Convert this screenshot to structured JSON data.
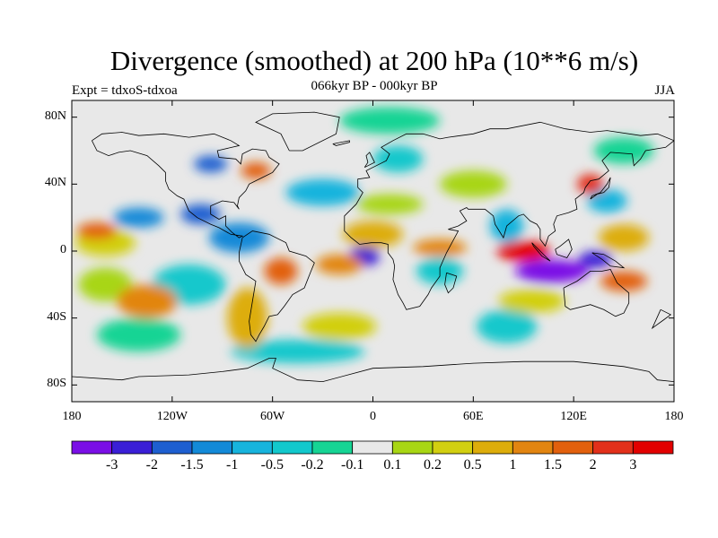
{
  "title": "Divergence (smoothed) at 200 hPa (10**6 m/s)",
  "subtitle": "066kyr BP - 000kyr BP",
  "left_string": "Expt = tdxoS-tdxoa",
  "right_string": "JJA",
  "map": {
    "projection": "cylindrical-equidistant",
    "lon_range": [
      -180,
      180
    ],
    "lat_range": [
      -90,
      90
    ],
    "lat_ticks": [
      {
        "value": 80,
        "label": "80N"
      },
      {
        "value": 40,
        "label": "40N"
      },
      {
        "value": 0,
        "label": "0"
      },
      {
        "value": -40,
        "label": "40S"
      },
      {
        "value": -80,
        "label": "80S"
      }
    ],
    "lon_ticks": [
      {
        "value": -180,
        "label": "180"
      },
      {
        "value": -120,
        "label": "120W"
      },
      {
        "value": -60,
        "label": "60W"
      },
      {
        "value": 0,
        "label": "0"
      },
      {
        "value": 60,
        "label": "60E"
      },
      {
        "value": 120,
        "label": "120E"
      },
      {
        "value": 180,
        "label": "180"
      }
    ],
    "regions": [
      {
        "lon": 107,
        "lat": -12,
        "rx": 22,
        "ry": 7,
        "level": 0
      },
      {
        "lon": 133,
        "lat": -5,
        "rx": 10,
        "ry": 5,
        "level": 1
      },
      {
        "lon": -5,
        "lat": -3,
        "rx": 9,
        "ry": 6,
        "level": 1
      },
      {
        "lon": -97,
        "lat": 52,
        "rx": 10,
        "ry": 5,
        "level": 2
      },
      {
        "lon": -103,
        "lat": 22,
        "rx": 12,
        "ry": 6,
        "level": 2
      },
      {
        "lon": -140,
        "lat": 20,
        "rx": 15,
        "ry": 6,
        "level": 3
      },
      {
        "lon": -80,
        "lat": 8,
        "rx": 18,
        "ry": 9,
        "level": 3
      },
      {
        "lon": -30,
        "lat": 35,
        "rx": 22,
        "ry": 8,
        "level": 4
      },
      {
        "lon": 140,
        "lat": 30,
        "rx": 12,
        "ry": 7,
        "level": 4
      },
      {
        "lon": 80,
        "lat": 15,
        "rx": 10,
        "ry": 10,
        "level": 4
      },
      {
        "lon": 15,
        "lat": 55,
        "rx": 15,
        "ry": 8,
        "level": 5
      },
      {
        "lon": 40,
        "lat": -12,
        "rx": 14,
        "ry": 8,
        "level": 5
      },
      {
        "lon": -110,
        "lat": -20,
        "rx": 22,
        "ry": 12,
        "level": 5
      },
      {
        "lon": 80,
        "lat": -45,
        "rx": 18,
        "ry": 10,
        "level": 5
      },
      {
        "lon": -45,
        "lat": -60,
        "rx": 40,
        "ry": 7,
        "level": 5
      },
      {
        "lon": -140,
        "lat": -50,
        "rx": 25,
        "ry": 10,
        "level": 6
      },
      {
        "lon": 150,
        "lat": 60,
        "rx": 18,
        "ry": 8,
        "level": 6
      },
      {
        "lon": 10,
        "lat": 78,
        "rx": 30,
        "ry": 8,
        "level": 6
      },
      {
        "lon": 10,
        "lat": 28,
        "rx": 20,
        "ry": 6,
        "level": 8
      },
      {
        "lon": 60,
        "lat": 40,
        "rx": 20,
        "ry": 8,
        "level": 8
      },
      {
        "lon": -160,
        "lat": -20,
        "rx": 16,
        "ry": 10,
        "level": 8
      },
      {
        "lon": 95,
        "lat": -30,
        "rx": 20,
        "ry": 7,
        "level": 9
      },
      {
        "lon": -20,
        "lat": -45,
        "rx": 22,
        "ry": 8,
        "level": 9
      },
      {
        "lon": -160,
        "lat": 5,
        "rx": 18,
        "ry": 8,
        "level": 9
      },
      {
        "lon": 0,
        "lat": 10,
        "rx": 18,
        "ry": 8,
        "level": 10
      },
      {
        "lon": -75,
        "lat": -40,
        "rx": 12,
        "ry": 18,
        "level": 10
      },
      {
        "lon": 150,
        "lat": 8,
        "rx": 15,
        "ry": 8,
        "level": 10
      },
      {
        "lon": -135,
        "lat": -30,
        "rx": 18,
        "ry": 10,
        "level": 11
      },
      {
        "lon": -20,
        "lat": -8,
        "rx": 14,
        "ry": 6,
        "level": 11
      },
      {
        "lon": 40,
        "lat": 2,
        "rx": 16,
        "ry": 5,
        "level": 11
      },
      {
        "lon": -165,
        "lat": 12,
        "rx": 12,
        "ry": 5,
        "level": 12
      },
      {
        "lon": -70,
        "lat": 48,
        "rx": 9,
        "ry": 5,
        "level": 12
      },
      {
        "lon": -55,
        "lat": -12,
        "rx": 10,
        "ry": 8,
        "level": 12
      },
      {
        "lon": 150,
        "lat": -18,
        "rx": 14,
        "ry": 6,
        "level": 12
      },
      {
        "lon": 130,
        "lat": 40,
        "rx": 8,
        "ry": 6,
        "level": 13
      },
      {
        "lon": 90,
        "lat": 0,
        "rx": 16,
        "ry": 6,
        "level": 14
      }
    ],
    "coastlines": [
      [
        [
          -168,
          66
        ],
        [
          -162,
          70
        ],
        [
          -150,
          71
        ],
        [
          -140,
          69
        ],
        [
          -125,
          70
        ],
        [
          -110,
          68
        ],
        [
          -95,
          70
        ],
        [
          -85,
          66
        ],
        [
          -80,
          63
        ],
        [
          -93,
          60
        ],
        [
          -92,
          56
        ],
        [
          -82,
          55
        ],
        [
          -79,
          52
        ],
        [
          -78,
          58
        ],
        [
          -72,
          61
        ],
        [
          -64,
          60
        ],
        [
          -62,
          56
        ],
        [
          -56,
          52
        ],
        [
          -60,
          47
        ],
        [
          -66,
          44
        ],
        [
          -70,
          42
        ],
        [
          -74,
          40
        ],
        [
          -76,
          36
        ],
        [
          -80,
          32
        ],
        [
          -81,
          27
        ],
        [
          -80,
          25
        ],
        [
          -83,
          29
        ],
        [
          -90,
          30
        ],
        [
          -97,
          27
        ],
        [
          -97,
          22
        ],
        [
          -92,
          19
        ],
        [
          -88,
          21
        ],
        [
          -88,
          15
        ],
        [
          -84,
          11
        ],
        [
          -80,
          8
        ],
        [
          -78,
          9
        ],
        [
          -85,
          10
        ],
        [
          -92,
          14
        ],
        [
          -97,
          16
        ],
        [
          -105,
          20
        ],
        [
          -110,
          24
        ],
        [
          -113,
          31
        ],
        [
          -117,
          33
        ],
        [
          -122,
          37
        ],
        [
          -124,
          42
        ],
        [
          -124,
          47
        ],
        [
          -128,
          51
        ],
        [
          -135,
          57
        ],
        [
          -145,
          60
        ],
        [
          -152,
          59
        ],
        [
          -158,
          57
        ],
        [
          -165,
          60
        ],
        [
          -168,
          66
        ]
      ],
      [
        [
          -78,
          8
        ],
        [
          -72,
          12
        ],
        [
          -62,
          10
        ],
        [
          -52,
          5
        ],
        [
          -50,
          0
        ],
        [
          -40,
          -3
        ],
        [
          -35,
          -7
        ],
        [
          -37,
          -12
        ],
        [
          -39,
          -17
        ],
        [
          -41,
          -22
        ],
        [
          -48,
          -26
        ],
        [
          -53,
          -33
        ],
        [
          -57,
          -38
        ],
        [
          -62,
          -39
        ],
        [
          -65,
          -45
        ],
        [
          -68,
          -50
        ],
        [
          -70,
          -54
        ],
        [
          -73,
          -50
        ],
        [
          -74,
          -42
        ],
        [
          -72,
          -30
        ],
        [
          -70,
          -18
        ],
        [
          -76,
          -14
        ],
        [
          -80,
          -6
        ],
        [
          -80,
          -1
        ],
        [
          -78,
          8
        ]
      ],
      [
        [
          -50,
          60
        ],
        [
          -42,
          60
        ],
        [
          -22,
          70
        ],
        [
          -20,
          80
        ],
        [
          -35,
          83
        ],
        [
          -60,
          82
        ],
        [
          -70,
          77
        ],
        [
          -55,
          70
        ],
        [
          -50,
          60
        ]
      ],
      [
        [
          -17,
          15
        ],
        [
          -17,
          21
        ],
        [
          -10,
          28
        ],
        [
          -6,
          35
        ],
        [
          -9,
          38
        ],
        [
          -9,
          43
        ],
        [
          -2,
          44
        ],
        [
          -4,
          48
        ],
        [
          2,
          51
        ],
        [
          8,
          54
        ],
        [
          10,
          58
        ],
        [
          5,
          62
        ],
        [
          12,
          66
        ],
        [
          20,
          70
        ],
        [
          30,
          70
        ],
        [
          40,
          67
        ],
        [
          45,
          68
        ],
        [
          60,
          70
        ],
        [
          70,
          73
        ],
        [
          80,
          73
        ],
        [
          100,
          77
        ],
        [
          115,
          73
        ],
        [
          130,
          71
        ],
        [
          140,
          72
        ],
        [
          160,
          69
        ],
        [
          170,
          70
        ],
        [
          180,
          66
        ],
        [
          175,
          62
        ],
        [
          163,
          60
        ],
        [
          160,
          55
        ],
        [
          156,
          51
        ],
        [
          155,
          58
        ],
        [
          142,
          59
        ],
        [
          137,
          54
        ],
        [
          141,
          48
        ],
        [
          135,
          43
        ],
        [
          130,
          42
        ],
        [
          127,
          38
        ],
        [
          126,
          35
        ],
        [
          121,
          31
        ],
        [
          122,
          25
        ],
        [
          117,
          23
        ],
        [
          110,
          21
        ],
        [
          108,
          16
        ],
        [
          109,
          12
        ],
        [
          105,
          9
        ],
        [
          103,
          3
        ],
        [
          100,
          7
        ],
        [
          100,
          13
        ],
        [
          98,
          16
        ],
        [
          94,
          18
        ],
        [
          90,
          22
        ],
        [
          87,
          21
        ],
        [
          80,
          15
        ],
        [
          78,
          8
        ],
        [
          73,
          16
        ],
        [
          72,
          21
        ],
        [
          67,
          25
        ],
        [
          62,
          25
        ],
        [
          57,
          25
        ],
        [
          56,
          26
        ],
        [
          52,
          24
        ],
        [
          56,
          18
        ],
        [
          51,
          15
        ],
        [
          45,
          13
        ],
        [
          51,
          12
        ],
        [
          44,
          -1
        ],
        [
          40,
          -10
        ],
        [
          40,
          -15
        ],
        [
          35,
          -22
        ],
        [
          33,
          -26
        ],
        [
          28,
          -33
        ],
        [
          20,
          -35
        ],
        [
          18,
          -31
        ],
        [
          15,
          -26
        ],
        [
          12,
          -17
        ],
        [
          13,
          -9
        ],
        [
          12,
          -5
        ],
        [
          9,
          -1
        ],
        [
          9,
          4
        ],
        [
          5,
          5
        ],
        [
          -1,
          5
        ],
        [
          -8,
          4
        ],
        [
          -13,
          8
        ],
        [
          -17,
          12
        ],
        [
          -17,
          15
        ]
      ],
      [
        [
          114,
          -22
        ],
        [
          122,
          -18
        ],
        [
          130,
          -12
        ],
        [
          137,
          -12
        ],
        [
          142,
          -11
        ],
        [
          146,
          -19
        ],
        [
          153,
          -25
        ],
        [
          153,
          -31
        ],
        [
          150,
          -37
        ],
        [
          145,
          -39
        ],
        [
          138,
          -35
        ],
        [
          130,
          -32
        ],
        [
          118,
          -35
        ],
        [
          115,
          -33
        ],
        [
          114,
          -22
        ]
      ],
      [
        [
          95,
          5
        ],
        [
          99,
          1
        ],
        [
          103,
          -3
        ],
        [
          106,
          -6
        ],
        [
          101,
          -3
        ],
        [
          96,
          3
        ],
        [
          95,
          5
        ]
      ],
      [
        [
          109,
          1
        ],
        [
          112,
          3
        ],
        [
          117,
          7
        ],
        [
          119,
          1
        ],
        [
          116,
          -4
        ],
        [
          110,
          -2
        ],
        [
          109,
          1
        ]
      ],
      [
        [
          131,
          -1
        ],
        [
          138,
          -2
        ],
        [
          145,
          -6
        ],
        [
          150,
          -10
        ],
        [
          142,
          -9
        ],
        [
          137,
          -5
        ],
        [
          131,
          -1
        ]
      ],
      [
        [
          130,
          31
        ],
        [
          134,
          34
        ],
        [
          138,
          35
        ],
        [
          141,
          38
        ],
        [
          142,
          44
        ],
        [
          140,
          40
        ],
        [
          136,
          35
        ],
        [
          131,
          33
        ],
        [
          130,
          31
        ]
      ],
      [
        [
          44,
          -13
        ],
        [
          50,
          -15
        ],
        [
          48,
          -22
        ],
        [
          45,
          -25
        ],
        [
          43,
          -20
        ],
        [
          44,
          -13
        ]
      ],
      [
        [
          -5,
          50
        ],
        [
          -3,
          53
        ],
        [
          -4,
          57
        ],
        [
          -2,
          59
        ],
        [
          1,
          53
        ],
        [
          -5,
          50
        ]
      ],
      [
        [
          -24,
          64
        ],
        [
          -14,
          66
        ],
        [
          -14,
          65
        ],
        [
          -22,
          63
        ],
        [
          -24,
          64
        ]
      ],
      [
        [
          172,
          -35
        ],
        [
          178,
          -38
        ],
        [
          174,
          -41
        ],
        [
          167,
          -46
        ],
        [
          172,
          -35
        ]
      ],
      [
        [
          -180,
          -75
        ],
        [
          -150,
          -77
        ],
        [
          -140,
          -75
        ],
        [
          -110,
          -74
        ],
        [
          -90,
          -72
        ],
        [
          -75,
          -70
        ],
        [
          -62,
          -64
        ],
        [
          -58,
          -64
        ],
        [
          -60,
          -70
        ],
        [
          -45,
          -77
        ],
        [
          -30,
          -78
        ],
        [
          0,
          -70
        ],
        [
          30,
          -69
        ],
        [
          60,
          -67
        ],
        [
          90,
          -66
        ],
        [
          120,
          -66
        ],
        [
          150,
          -69
        ],
        [
          165,
          -72
        ],
        [
          170,
          -77
        ],
        [
          180,
          -78
        ]
      ]
    ]
  },
  "colorbar": {
    "colors": [
      "#7a0fe6",
      "#3a1fd6",
      "#1e5fd0",
      "#138ad8",
      "#17b4dd",
      "#12c8cc",
      "#16d494",
      "#e8e8e8",
      "#a8d614",
      "#d2cf10",
      "#ddad0b",
      "#e28510",
      "#e2600d",
      "#e2301a",
      "#e20000"
    ],
    "labels": [
      "-3",
      "-2",
      "-1.5",
      "-1",
      "-0.5",
      "-0.2",
      "-0.1",
      "0.1",
      "0.2",
      "0.5",
      "1",
      "1.5",
      "2",
      "3"
    ]
  }
}
